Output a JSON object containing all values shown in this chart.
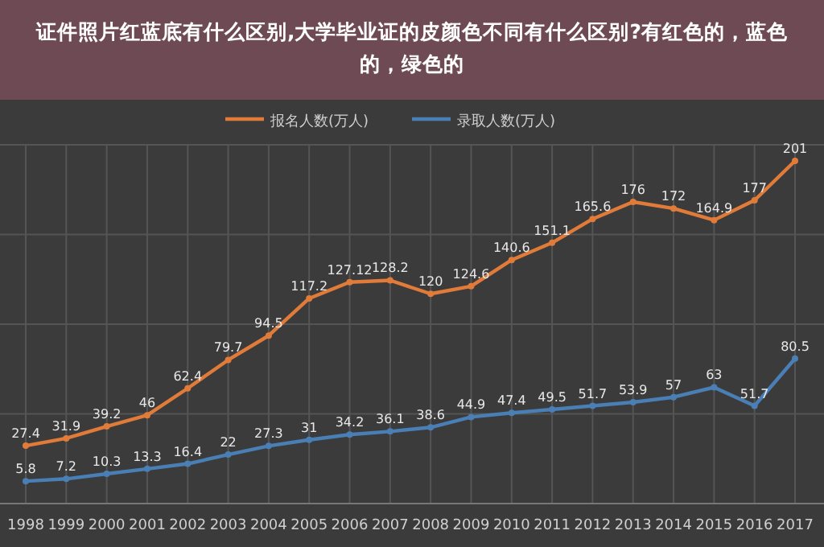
{
  "chart_data": {
    "type": "line",
    "title": "证件照片红蓝底有什么区别,大学毕业证的皮颜色不同有什么区别?有红色的，蓝色的，绿色的",
    "categories": [
      "1998",
      "1999",
      "2000",
      "2001",
      "2002",
      "2003",
      "2004",
      "2005",
      "2006",
      "2007",
      "2008",
      "2009",
      "2010",
      "2011",
      "2012",
      "2013",
      "2014",
      "2015",
      "2016",
      "2017"
    ],
    "series": [
      {
        "name": "报名人数(万人)",
        "color": "#e07b39",
        "values": [
          27.4,
          31.9,
          39.2,
          46,
          62.4,
          79.7,
          94.5,
          117.2,
          127.12,
          128.2,
          120,
          124.6,
          140.6,
          151.1,
          165.6,
          176,
          172,
          164.9,
          177,
          201
        ]
      },
      {
        "name": "录取人数(万人)",
        "color": "#4a7fb5",
        "values": [
          5.8,
          7.2,
          10.3,
          13.3,
          16.4,
          22,
          27.3,
          31,
          34.2,
          36.1,
          38.6,
          44.9,
          47.4,
          49.5,
          51.7,
          53.9,
          57,
          63,
          51.7,
          80.5
        ]
      }
    ],
    "data_labels": true,
    "grid": true,
    "legend": "top",
    "marker": "circle",
    "line_style": "solid"
  }
}
